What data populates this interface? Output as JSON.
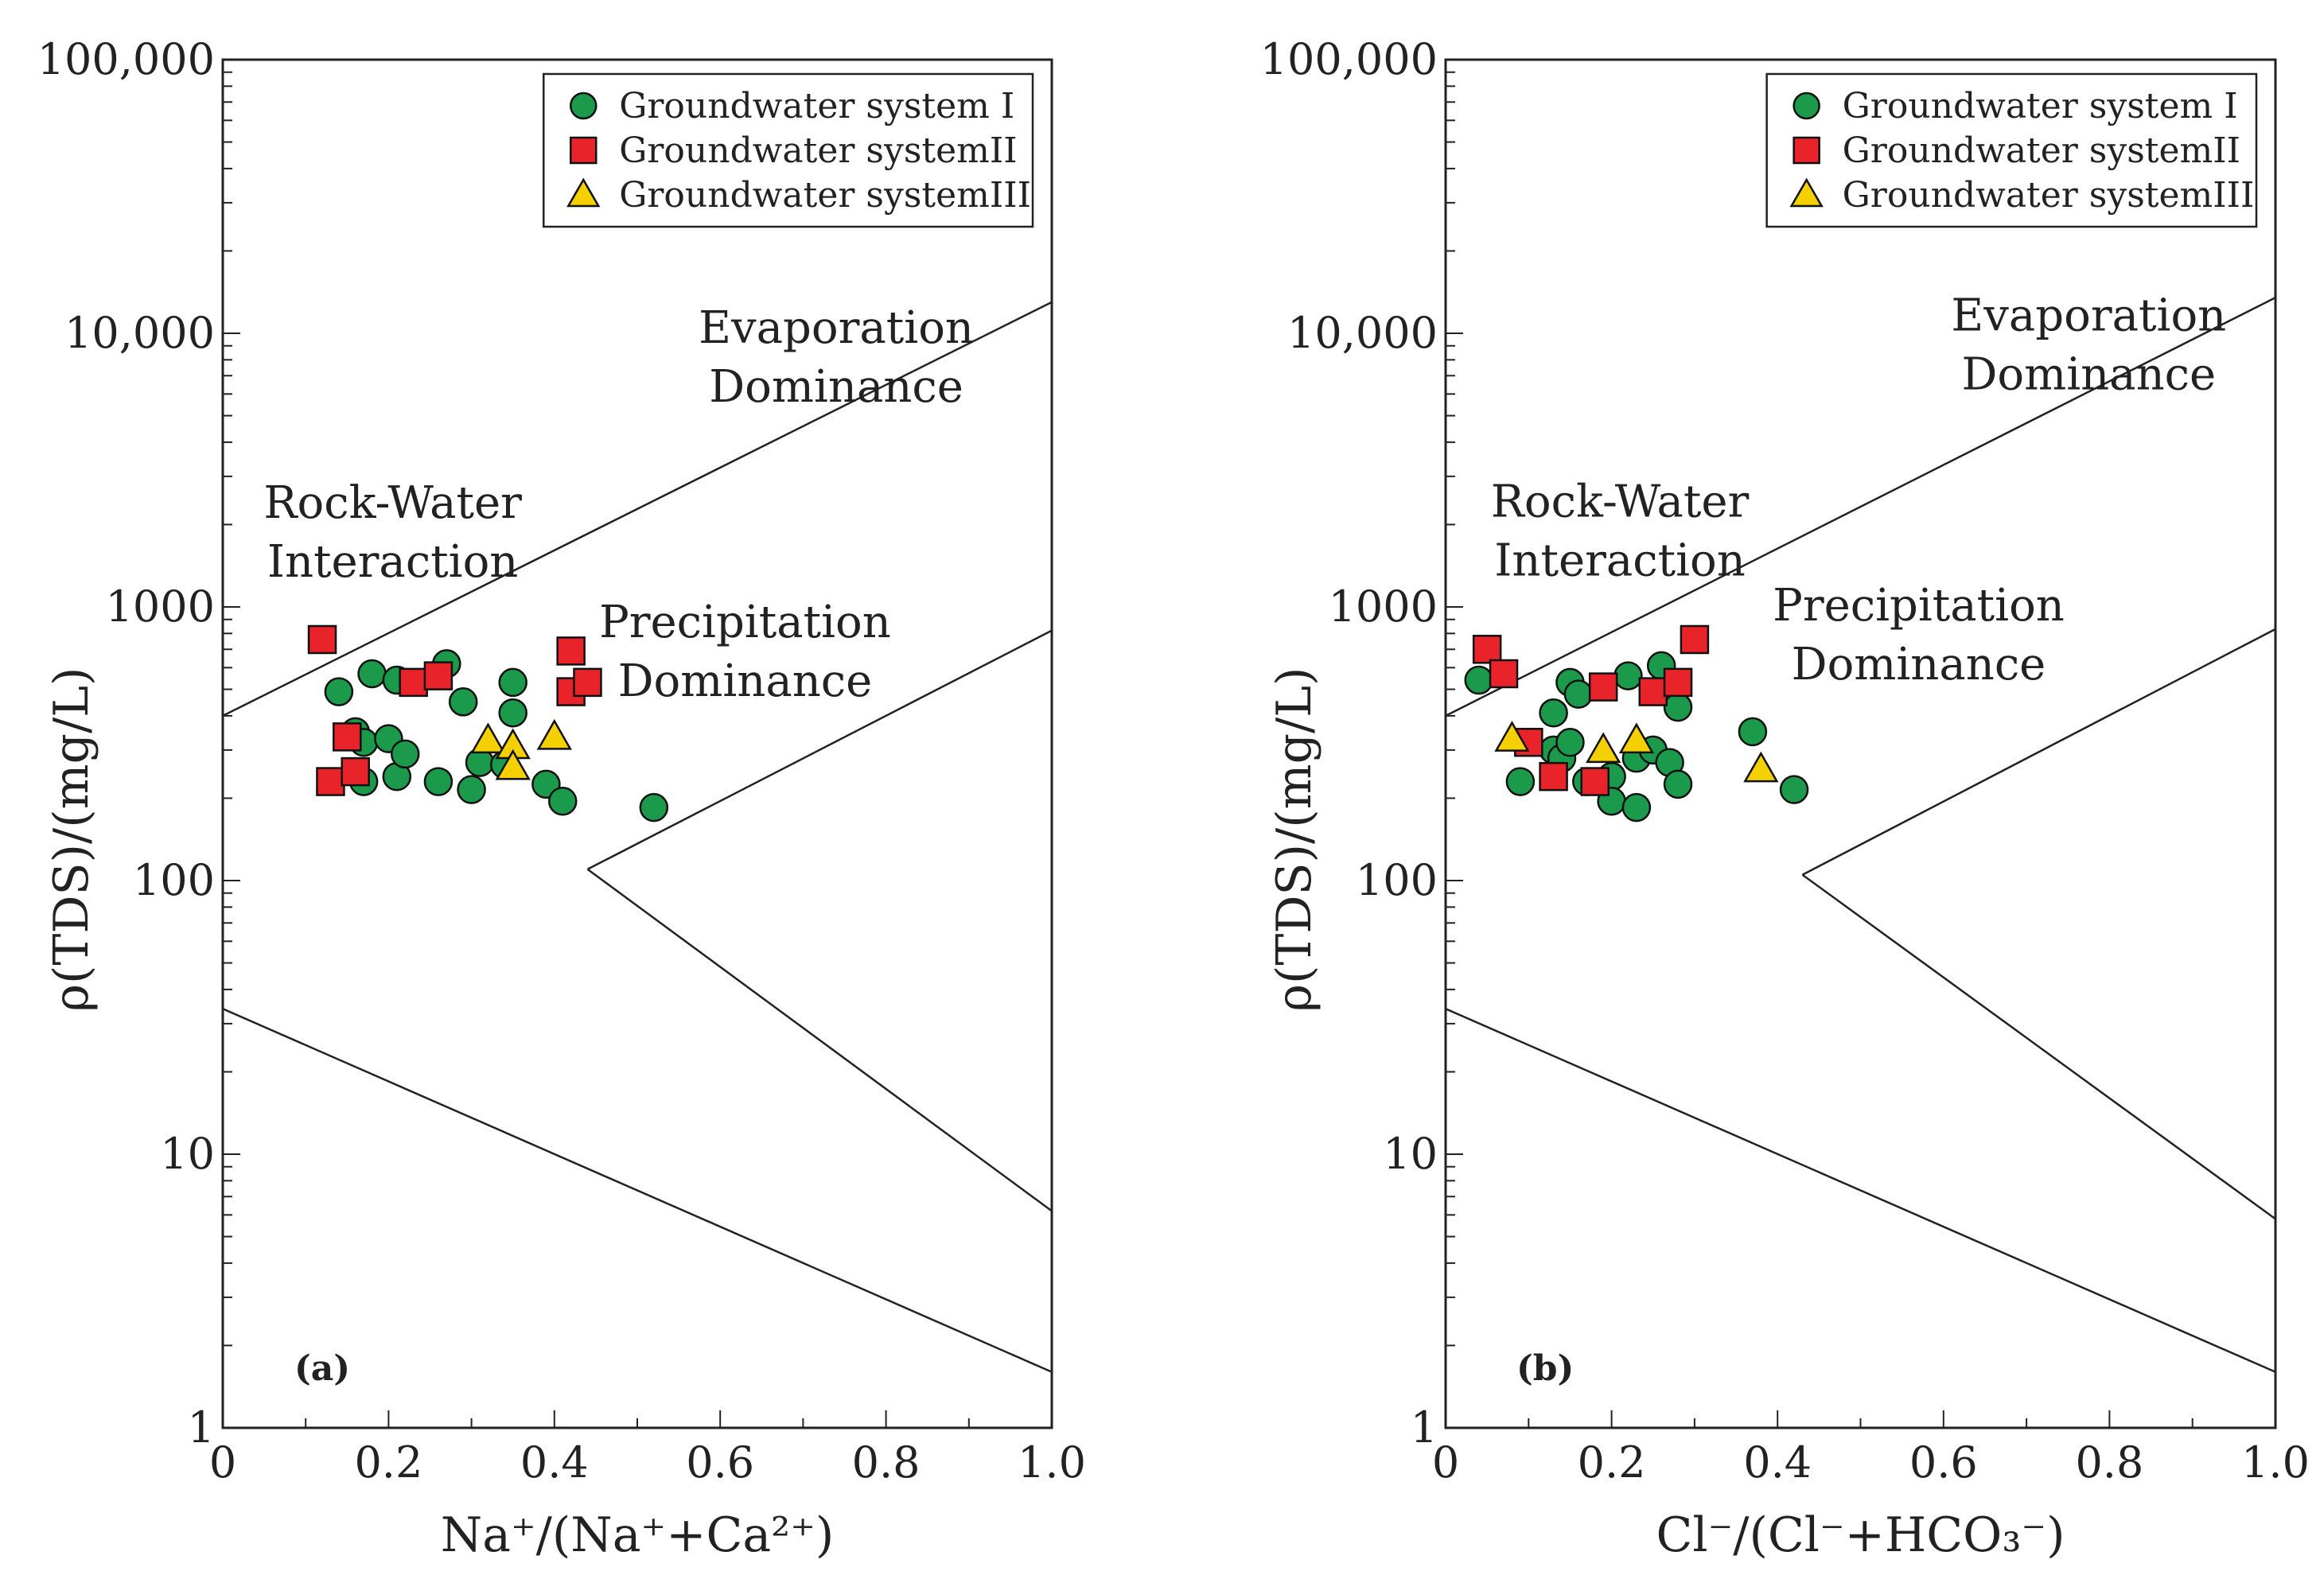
{
  "colors": {
    "green": "#1a9a4a",
    "red": "#e8232a",
    "yellow": "#f5d000",
    "line": "#222222"
  },
  "chart_data": [
    {
      "type": "scatter",
      "panel": "(a)",
      "xlabel": "Na⁺/(Na⁺+Ca²⁺)",
      "ylabel": "ρ(TDS)/(mg/L)",
      "xlim": [
        0,
        1.0
      ],
      "ylim": [
        1,
        100000
      ],
      "yscale": "log",
      "x_ticks": [
        "0",
        "0.2",
        "0.4",
        "0.6",
        "0.8",
        "1.0"
      ],
      "y_ticks": [
        "1",
        "10",
        "100",
        "1000",
        "10,000",
        "100,000"
      ],
      "legend": [
        "Groundwater system Ⅰ",
        "Groundwater systemII",
        "Groundwater systemIII"
      ],
      "region_labels": {
        "evaporation": [
          "Evaporation",
          "Dominance"
        ],
        "rock": [
          "Rock-Water",
          "Interaction"
        ],
        "precipitation": [
          "Precipitation",
          "Dominance"
        ]
      },
      "boundary_lines": [
        {
          "points": [
            [
              0,
              400
            ],
            [
              1.0,
              13000
            ]
          ]
        },
        {
          "points": [
            [
              0,
              34
            ],
            [
              1.0,
              1.6
            ]
          ]
        },
        {
          "points": [
            [
              0.44,
              110
            ],
            [
              1.0,
              820
            ]
          ]
        },
        {
          "points": [
            [
              0.44,
              110
            ],
            [
              1.0,
              6.2
            ]
          ]
        }
      ],
      "series": [
        {
          "name": "Groundwater system Ⅰ",
          "marker": "circle",
          "points": [
            [
              0.14,
              490
            ],
            [
              0.18,
              570
            ],
            [
              0.21,
              540
            ],
            [
              0.27,
              620
            ],
            [
              0.29,
              450
            ],
            [
              0.35,
              530
            ],
            [
              0.35,
              410
            ],
            [
              0.16,
              350
            ],
            [
              0.17,
              230
            ],
            [
              0.17,
              320
            ],
            [
              0.2,
              330
            ],
            [
              0.21,
              240
            ],
            [
              0.22,
              290
            ],
            [
              0.26,
              230
            ],
            [
              0.3,
              215
            ],
            [
              0.31,
              270
            ],
            [
              0.34,
              265
            ],
            [
              0.39,
              225
            ],
            [
              0.41,
              195
            ],
            [
              0.52,
              185
            ]
          ]
        },
        {
          "name": "Groundwater systemII",
          "marker": "square",
          "points": [
            [
              0.12,
              760
            ],
            [
              0.13,
              230
            ],
            [
              0.15,
              335
            ],
            [
              0.16,
              250
            ],
            [
              0.23,
              530
            ],
            [
              0.26,
              560
            ],
            [
              0.42,
              690
            ],
            [
              0.42,
              490
            ],
            [
              0.44,
              530
            ]
          ]
        },
        {
          "name": "Groundwater systemIII",
          "marker": "triangle",
          "points": [
            [
              0.32,
              325
            ],
            [
              0.35,
              310
            ],
            [
              0.35,
              260
            ],
            [
              0.4,
              335
            ]
          ]
        }
      ]
    },
    {
      "type": "scatter",
      "panel": "(b)",
      "xlabel": "Cl⁻/(Cl⁻+HCO₃⁻)",
      "ylabel": "ρ(TDS)/(mg/L)",
      "xlim": [
        0,
        1.0
      ],
      "ylim": [
        1,
        100000
      ],
      "yscale": "log",
      "x_ticks": [
        "0",
        "0.2",
        "0.4",
        "0.6",
        "0.8",
        "1.0"
      ],
      "y_ticks": [
        "1",
        "10",
        "100",
        "1000",
        "10,000",
        "100,000"
      ],
      "legend": [
        "Groundwater system Ⅰ",
        "Groundwater systemII",
        "Groundwater systemIII"
      ],
      "region_labels": {
        "evaporation": [
          "Evaporation",
          "Dominance"
        ],
        "rock": [
          "Rock-Water",
          "Interaction"
        ],
        "precipitation": [
          "Precipitation",
          "Dominance"
        ]
      },
      "boundary_lines": [
        {
          "points": [
            [
              0,
              400
            ],
            [
              1.0,
              13500
            ]
          ]
        },
        {
          "points": [
            [
              0,
              34
            ],
            [
              1.0,
              1.6
            ]
          ]
        },
        {
          "points": [
            [
              0.43,
              105
            ],
            [
              1.0,
              830
            ]
          ]
        },
        {
          "points": [
            [
              0.43,
              105
            ],
            [
              1.0,
              5.8
            ]
          ]
        }
      ],
      "series": [
        {
          "name": "Groundwater system Ⅰ",
          "marker": "circle",
          "points": [
            [
              0.04,
              540
            ],
            [
              0.09,
              230
            ],
            [
              0.13,
              410
            ],
            [
              0.13,
              300
            ],
            [
              0.14,
              280
            ],
            [
              0.15,
              530
            ],
            [
              0.15,
              320
            ],
            [
              0.16,
              480
            ],
            [
              0.17,
              230
            ],
            [
              0.2,
              240
            ],
            [
              0.2,
              195
            ],
            [
              0.22,
              560
            ],
            [
              0.23,
              185
            ],
            [
              0.23,
              280
            ],
            [
              0.25,
              300
            ],
            [
              0.26,
              610
            ],
            [
              0.27,
              270
            ],
            [
              0.28,
              430
            ],
            [
              0.28,
              225
            ],
            [
              0.37,
              350
            ],
            [
              0.42,
              215
            ]
          ]
        },
        {
          "name": "Groundwater systemII",
          "marker": "square",
          "points": [
            [
              0.05,
              700
            ],
            [
              0.07,
              570
            ],
            [
              0.1,
              320
            ],
            [
              0.13,
              240
            ],
            [
              0.18,
              230
            ],
            [
              0.19,
              510
            ],
            [
              0.25,
              490
            ],
            [
              0.28,
              530
            ],
            [
              0.3,
              760
            ]
          ]
        },
        {
          "name": "Groundwater systemIII",
          "marker": "triangle",
          "points": [
            [
              0.08,
              330
            ],
            [
              0.19,
              300
            ],
            [
              0.23,
              325
            ],
            [
              0.38,
              255
            ]
          ]
        }
      ]
    }
  ]
}
